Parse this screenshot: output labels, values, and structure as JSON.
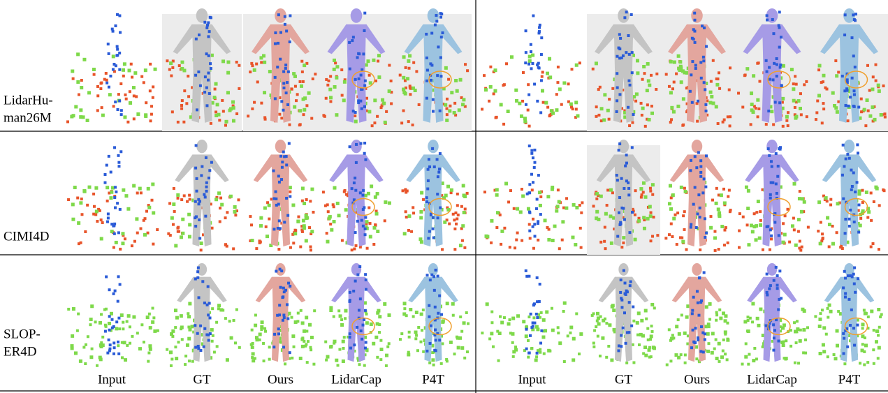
{
  "figure": {
    "rows": [
      {
        "label_lines": [
          "LidarHu-",
          "man26M"
        ]
      },
      {
        "label_lines": [
          "CIMI4D"
        ]
      },
      {
        "label_lines": [
          "SLOP-",
          "ER4D"
        ]
      }
    ],
    "left_columns": [
      "Input",
      "GT",
      "Ours",
      "LidarCap",
      "P4T"
    ],
    "right_columns": [
      "Input",
      "GT",
      "Ours",
      "LidarCap",
      "P4T"
    ]
  }
}
